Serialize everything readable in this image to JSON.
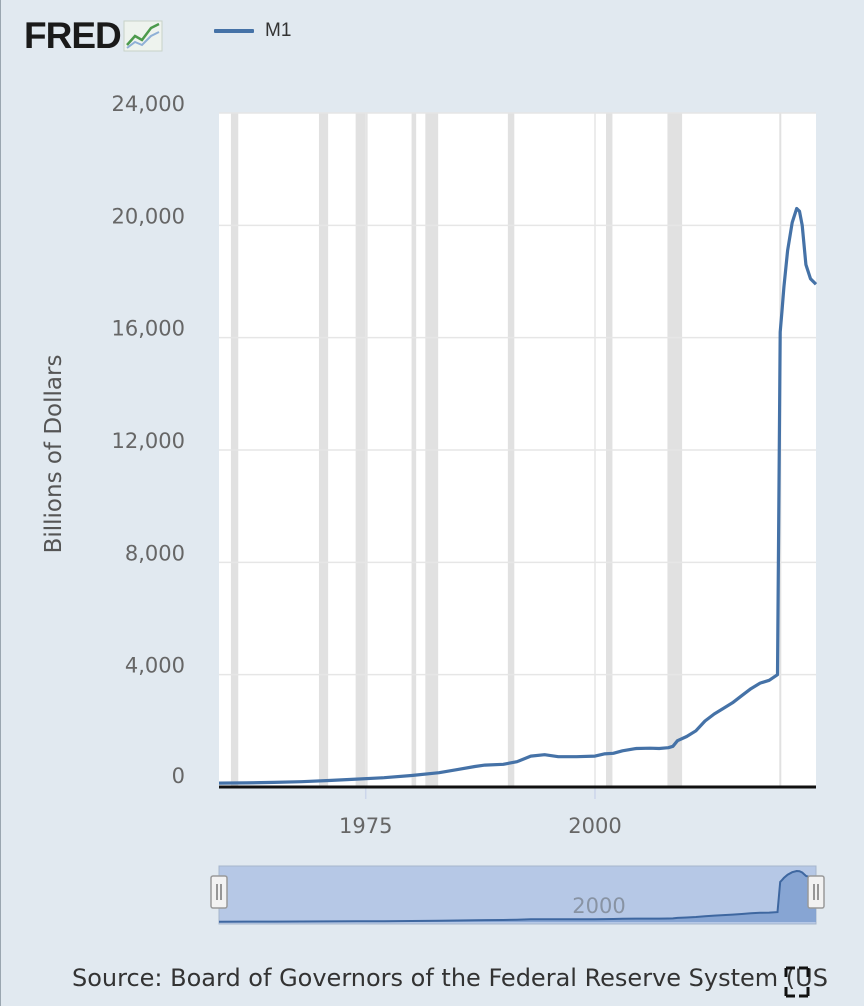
{
  "header": {
    "logo_text": "FRED",
    "logo_icon": "line-chart-icon"
  },
  "colors": {
    "line": "#4572a7",
    "recession": "#e1e1e1",
    "plot_bg": "#ffffff",
    "page_bg": "#e1e9f0",
    "navigator_fill": "#b6c8e6"
  },
  "navigator": {
    "tick_label": "2000"
  },
  "source": {
    "text": "Source: Board of Governors of the Federal Reserve System (US"
  },
  "chart_data": {
    "type": "line",
    "title": "",
    "xlabel": "",
    "ylabel": "Billions of Dollars",
    "xlim": [
      1959,
      2024.1
    ],
    "ylim": [
      0,
      24000
    ],
    "x_ticks": [
      1975,
      2000
    ],
    "x_tick_labels": [
      "1975",
      "2000"
    ],
    "y_ticks": [
      0,
      4000,
      8000,
      12000,
      16000,
      20000,
      24000
    ],
    "y_tick_labels": [
      "0",
      "4,000",
      "8,000",
      "12,000",
      "16,000",
      "20,000",
      "24,000"
    ],
    "grid": true,
    "legend": "top-left",
    "recessions": [
      [
        1960.3,
        1961.1
      ],
      [
        1969.9,
        1970.9
      ],
      [
        1973.9,
        1975.2
      ],
      [
        1980.0,
        1980.5
      ],
      [
        1981.5,
        1982.9
      ],
      [
        1990.5,
        1991.2
      ],
      [
        2001.2,
        2001.9
      ],
      [
        2007.9,
        2009.5
      ],
      [
        2020.1,
        2020.3
      ]
    ],
    "series": [
      {
        "name": "M1",
        "x": [
          1959,
          1962,
          1965,
          1968,
          1971,
          1974,
          1977,
          1980,
          1983,
          1985,
          1986.9,
          1988,
          1990,
          1991.5,
          1993,
          1994.5,
          1996,
          1998,
          2000,
          2001,
          2002,
          2003,
          2004.5,
          2006,
          2007,
          2008,
          2008.5,
          2009,
          2010,
          2011,
          2012,
          2013,
          2014,
          2015,
          2016,
          2017,
          2018,
          2019,
          2019.9,
          2020.2,
          2020.4,
          2020.6,
          2021,
          2021.5,
          2022,
          2022.3,
          2022.6,
          2023,
          2023.5,
          2024.1
        ],
        "y": [
          140,
          145,
          165,
          190,
          230,
          280,
          330,
          410,
          510,
          620,
          730,
          780,
          810,
          900,
          1100,
          1150,
          1080,
          1080,
          1100,
          1180,
          1200,
          1290,
          1370,
          1380,
          1370,
          1400,
          1450,
          1650,
          1800,
          2000,
          2350,
          2600,
          2800,
          3000,
          3250,
          3500,
          3700,
          3800,
          4000,
          16200,
          17000,
          17800,
          19100,
          20100,
          20600,
          20500,
          20000,
          18600,
          18100,
          17900
        ]
      }
    ]
  }
}
